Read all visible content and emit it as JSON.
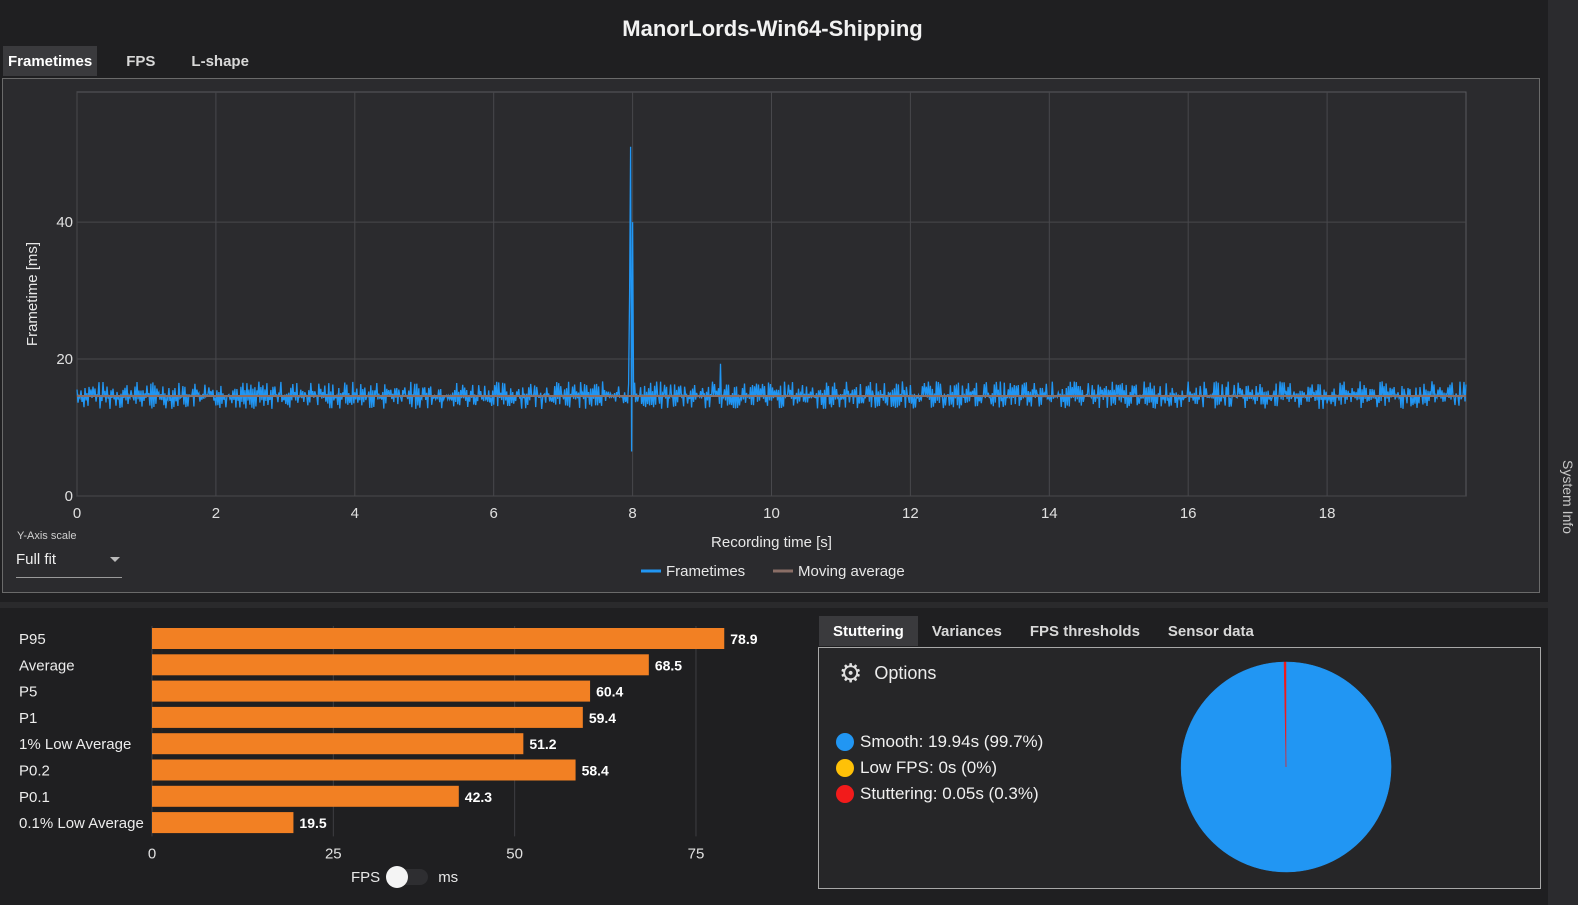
{
  "window": {
    "title": "ManorLords-Win64-Shipping"
  },
  "top_tabs": [
    "Frametimes",
    "FPS",
    "L-shape"
  ],
  "yaxis_scale": {
    "label": "Y-Axis scale",
    "value": "Full fit"
  },
  "side_panel": {
    "label": "System Info"
  },
  "bar_toggle": {
    "left": "FPS",
    "right": "ms"
  },
  "bottom_tabs": [
    "Stuttering",
    "Variances",
    "FPS thresholds",
    "Sensor data"
  ],
  "stuttering": {
    "options_label": "Options",
    "items": [
      {
        "label": "Smooth:",
        "value": "19.94s (99.7%)",
        "color": "#2196f3"
      },
      {
        "label": "Low FPS:",
        "value": "0s (0%)",
        "color": "#ffc107"
      },
      {
        "label": "Stuttering:",
        "value": "0.05s (0.3%)",
        "color": "#f21b1b"
      }
    ],
    "pie": [
      {
        "name": "Smooth",
        "value": 99.7,
        "color": "#2196f3"
      },
      {
        "name": "Low FPS",
        "value": 0,
        "color": "#ffc107"
      },
      {
        "name": "Stuttering",
        "value": 0.3,
        "color": "#f21b1b"
      }
    ]
  },
  "colors": {
    "accent": "#2196f3",
    "bar": "#f28023",
    "moving_average": "#8a6e66"
  },
  "chart_data": [
    {
      "type": "line",
      "xlabel": "Recording time [s]",
      "ylabel": "Frametime [ms]",
      "xlim": [
        0,
        20
      ],
      "ylim": [
        0,
        59
      ],
      "xticks": [
        0,
        2,
        4,
        6,
        8,
        10,
        12,
        14,
        16,
        18
      ],
      "yticks": [
        0,
        20,
        40
      ],
      "grid": true,
      "legend_position": "bottom",
      "series": [
        {
          "name": "Frametimes",
          "color": "#2196f3",
          "baseline": 14.6,
          "typical_range": [
            12.5,
            17.0
          ],
          "spikes": [
            {
              "x": 7.95,
              "y": 29.5
            },
            {
              "x": 7.97,
              "y": 51.0
            },
            {
              "x": 7.99,
              "y": 6.5
            },
            {
              "x": 8.0,
              "y": 40.0
            },
            {
              "x": 9.26,
              "y": 19.3
            }
          ]
        },
        {
          "name": "Moving average",
          "color": "#8a6e66",
          "value": 14.6
        }
      ]
    },
    {
      "type": "bar",
      "orientation": "horizontal",
      "categories": [
        "P95",
        "Average",
        "P5",
        "P1",
        "1% Low Average",
        "P0.2",
        "P0.1",
        "0.1% Low Average"
      ],
      "values": [
        78.9,
        68.5,
        60.4,
        59.4,
        51.2,
        58.4,
        42.3,
        19.5
      ],
      "xticks": [
        0,
        25,
        50,
        75
      ],
      "xlim": [
        0,
        87
      ],
      "grid": true
    }
  ]
}
